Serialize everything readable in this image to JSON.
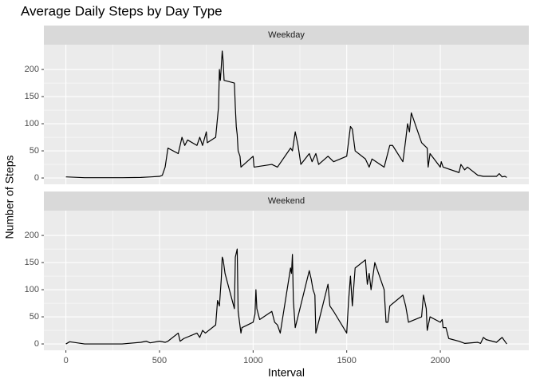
{
  "chart_data": {
    "type": "line",
    "title": "Average Daily Steps by Day Type",
    "x_label": "Interval",
    "y_label": "Number of Steps",
    "xlim": [
      -117.75,
      2472.75
    ],
    "ylim": [
      -11.7,
      245.7
    ],
    "xticks": [
      0,
      500,
      1000,
      1500,
      2000
    ],
    "yticks": [
      0,
      50,
      100,
      150,
      200
    ],
    "grid": true,
    "color": "#000000",
    "panels": [
      {
        "name": "Weekday",
        "x": [
          0,
          100,
          200,
          300,
          400,
          455,
          500,
          515,
          530,
          545,
          600,
          620,
          635,
          650,
          700,
          715,
          730,
          750,
          755,
          800,
          815,
          820,
          825,
          830,
          835,
          840,
          845,
          900,
          905,
          910,
          915,
          920,
          930,
          935,
          1000,
          1005,
          1100,
          1130,
          1200,
          1210,
          1225,
          1240,
          1255,
          1300,
          1315,
          1335,
          1350,
          1400,
          1430,
          1500,
          1520,
          1530,
          1545,
          1600,
          1620,
          1635,
          1700,
          1730,
          1745,
          1800,
          1815,
          1825,
          1835,
          1845,
          1900,
          1930,
          1935,
          1945,
          2000,
          2005,
          2015,
          2100,
          2110,
          2130,
          2145,
          2200,
          2230,
          2300,
          2315,
          2330,
          2345,
          2355
        ],
        "values": [
          2,
          0.5,
          0.5,
          0.5,
          1,
          2,
          3,
          5,
          20,
          55,
          45,
          75,
          60,
          70,
          60,
          75,
          60,
          85,
          65,
          75,
          130,
          200,
          180,
          205,
          234,
          215,
          180,
          175,
          130,
          95,
          80,
          50,
          40,
          20,
          40,
          20,
          25,
          20,
          55,
          50,
          85,
          60,
          25,
          45,
          30,
          45,
          25,
          40,
          30,
          40,
          95,
          90,
          50,
          35,
          20,
          35,
          20,
          60,
          60,
          30,
          70,
          100,
          85,
          120,
          65,
          55,
          20,
          45,
          20,
          30,
          20,
          10,
          25,
          15,
          20,
          5,
          3,
          3,
          8,
          2,
          3,
          1
        ]
      },
      {
        "name": "Weekend",
        "x": [
          0,
          20,
          100,
          300,
          400,
          430,
          450,
          500,
          530,
          545,
          600,
          610,
          630,
          700,
          715,
          730,
          745,
          800,
          810,
          820,
          830,
          835,
          840,
          850,
          900,
          905,
          915,
          920,
          935,
          940,
          1000,
          1010,
          1015,
          1020,
          1035,
          1100,
          1115,
          1130,
          1145,
          1200,
          1205,
          1210,
          1215,
          1225,
          1300,
          1310,
          1320,
          1330,
          1335,
          1400,
          1410,
          1430,
          1500,
          1510,
          1520,
          1530,
          1545,
          1600,
          1610,
          1620,
          1630,
          1650,
          1700,
          1710,
          1720,
          1730,
          1800,
          1815,
          1830,
          1900,
          1910,
          1925,
          1930,
          1945,
          2000,
          2010,
          2015,
          2030,
          2045,
          2100,
          2130,
          2200,
          2215,
          2230,
          2245,
          2300,
          2330,
          2355
        ],
        "values": [
          0,
          4,
          0,
          0,
          3,
          5,
          2,
          5,
          3,
          5,
          20,
          5,
          10,
          20,
          12,
          25,
          20,
          35,
          80,
          70,
          120,
          160,
          155,
          130,
          65,
          160,
          175,
          60,
          20,
          30,
          40,
          55,
          100,
          65,
          45,
          60,
          40,
          35,
          20,
          140,
          130,
          165,
          80,
          30,
          135,
          120,
          100,
          90,
          20,
          110,
          70,
          60,
          20,
          80,
          125,
          70,
          140,
          155,
          110,
          130,
          100,
          150,
          100,
          40,
          40,
          70,
          90,
          70,
          40,
          50,
          90,
          65,
          25,
          50,
          40,
          45,
          30,
          30,
          10,
          5,
          1,
          3,
          1,
          12,
          8,
          3,
          12,
          0
        ]
      }
    ]
  }
}
